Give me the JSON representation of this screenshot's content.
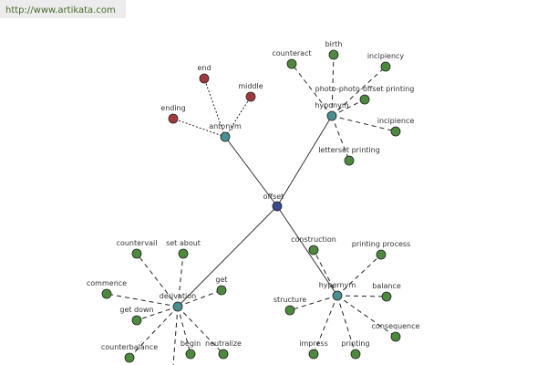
{
  "header": {
    "url": "http://www.artikata.com"
  },
  "center": {
    "label": "offset"
  },
  "groups": [
    {
      "label": "antonym",
      "children": [
        {
          "label": "end"
        },
        {
          "label": "middle"
        },
        {
          "label": "ending"
        }
      ]
    },
    {
      "label": "hyponym",
      "children": [
        {
          "label": "counteract"
        },
        {
          "label": "birth"
        },
        {
          "label": "incipiency"
        },
        {
          "label": "photo-photo-offset printing"
        },
        {
          "label": "incipience"
        },
        {
          "label": "letterset printing"
        }
      ]
    },
    {
      "label": "derivation",
      "children": [
        {
          "label": "countervail"
        },
        {
          "label": "set about"
        },
        {
          "label": "get"
        },
        {
          "label": "commence"
        },
        {
          "label": "get down"
        },
        {
          "label": "counterbalance"
        },
        {
          "label": "begin"
        },
        {
          "label": "neutralize"
        }
      ]
    },
    {
      "label": "hypernym",
      "children": [
        {
          "label": "construction"
        },
        {
          "label": "printing process"
        },
        {
          "label": "balance"
        },
        {
          "label": "structure"
        },
        {
          "label": "consequence"
        },
        {
          "label": "impress"
        },
        {
          "label": "printing"
        }
      ]
    }
  ]
}
